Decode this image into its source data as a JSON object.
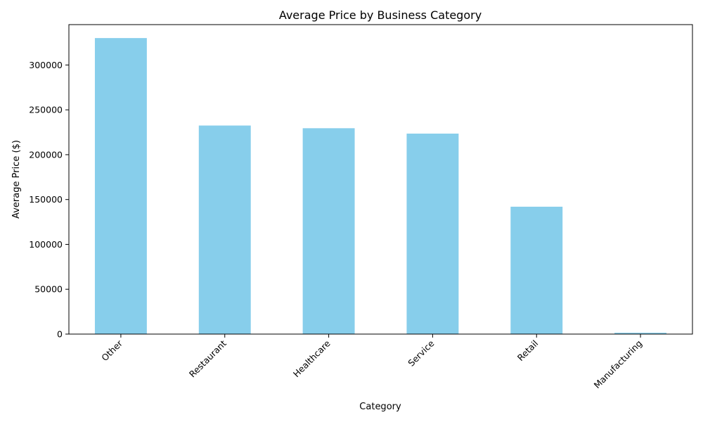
{
  "chart_data": {
    "type": "bar",
    "title": "Average Price by Business Category",
    "xlabel": "Category",
    "ylabel": "Average Price ($)",
    "categories": [
      "Other",
      "Restaurant",
      "Healthcare",
      "Service",
      "Retail",
      "Manufacturing"
    ],
    "values": [
      330000,
      232500,
      229500,
      223500,
      142000,
      1500
    ],
    "ylim": [
      0,
      345000
    ],
    "yticks": [
      0,
      50000,
      100000,
      150000,
      200000,
      250000,
      300000
    ],
    "ytick_labels": [
      "0",
      "50000",
      "100000",
      "150000",
      "200000",
      "250000",
      "300000"
    ],
    "bar_color": "#87CEEB",
    "grid": false,
    "legend": "none"
  }
}
